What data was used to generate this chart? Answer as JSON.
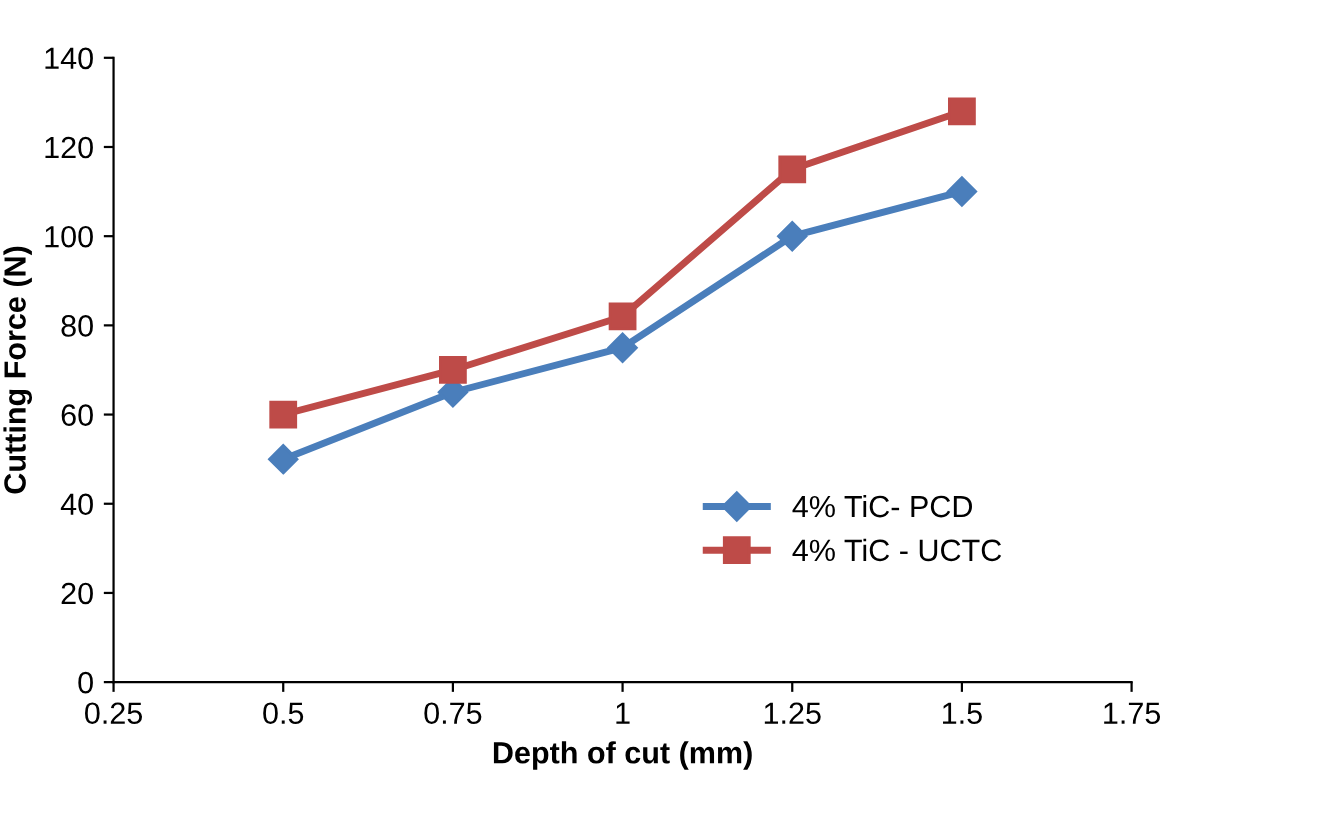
{
  "chart_data": {
    "type": "line",
    "xlabel": "Depth of cut (mm)",
    "ylabel": "Cutting Force (N)",
    "x": [
      0.5,
      0.75,
      1,
      1.25,
      1.5
    ],
    "series": [
      {
        "name": "4% TiC- PCD",
        "color": "#4a7ebb",
        "marker": "diamond",
        "values": [
          50,
          65,
          75,
          100,
          110
        ]
      },
      {
        "name": "4% TiC - UCTC",
        "color": "#be4b48",
        "marker": "square",
        "values": [
          60,
          70,
          82,
          115,
          128
        ]
      }
    ],
    "xlim": [
      0.25,
      1.75
    ],
    "xticks": [
      0.25,
      0.5,
      0.75,
      1,
      1.25,
      1.5,
      1.75
    ],
    "ylim": [
      0,
      140
    ],
    "yticks": [
      0,
      20,
      40,
      60,
      80,
      100,
      120,
      140
    ],
    "grid": false,
    "legend": "bottom right",
    "line_style": "solid"
  }
}
